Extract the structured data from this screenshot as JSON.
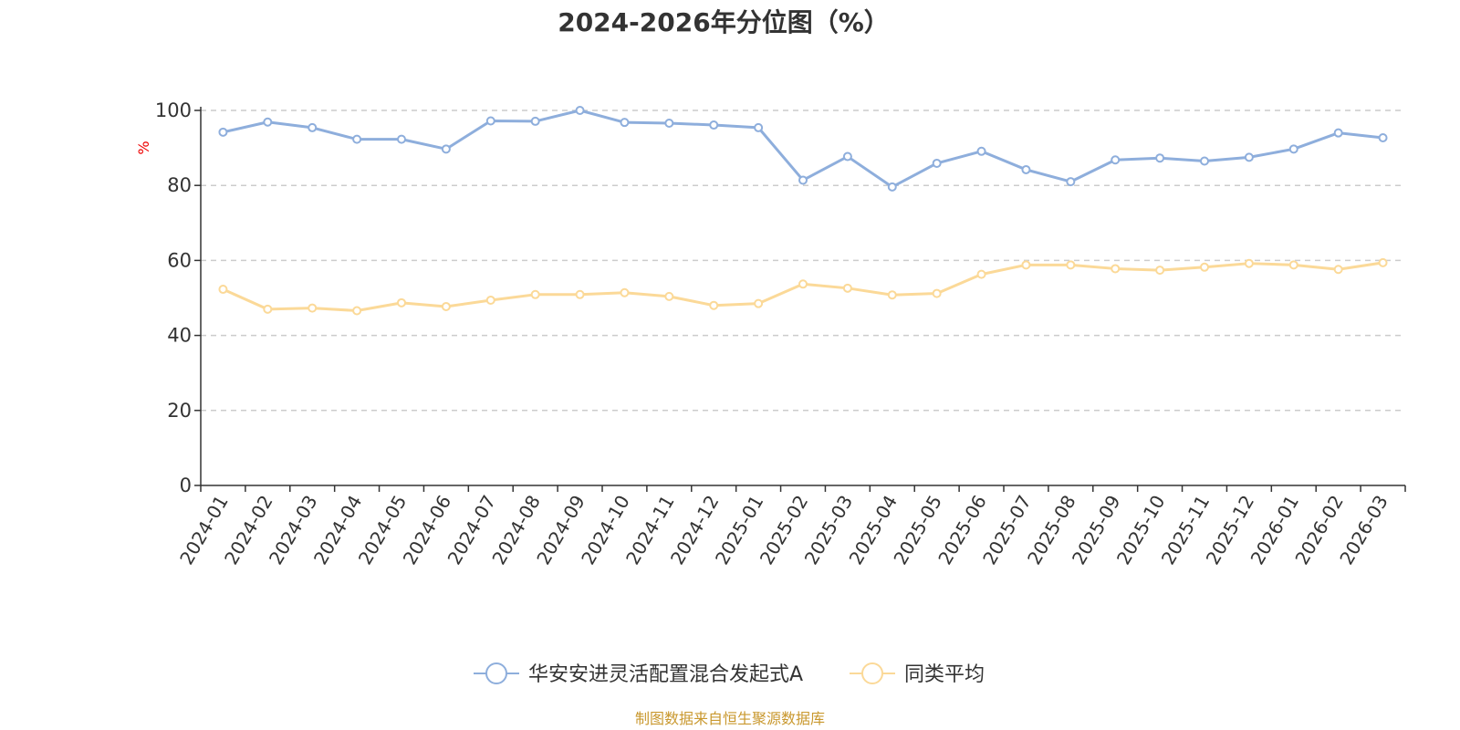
{
  "chart_data": {
    "type": "line",
    "title": "2024-2026年分位图（%）",
    "ylabel": "%",
    "xlabel": "",
    "ylim": [
      0,
      100
    ],
    "yticks": [
      0,
      20,
      40,
      60,
      80,
      100
    ],
    "grid": "horizontal-dashed",
    "legend_position": "bottom",
    "categories": [
      "2024-01",
      "2024-02",
      "2024-03",
      "2024-04",
      "2024-05",
      "2024-06",
      "2024-07",
      "2024-08",
      "2024-09",
      "2024-10",
      "2024-11",
      "2024-12",
      "2025-01",
      "2025-02",
      "2025-03",
      "2025-04",
      "2025-05",
      "2025-06",
      "2025-07",
      "2025-08",
      "2025-09",
      "2025-10",
      "2025-11",
      "2025-12",
      "2026-01",
      "2026-02",
      "2026-03"
    ],
    "series": [
      {
        "name": "华安安进灵活配置混合发起式A",
        "color": "#8eaedc",
        "values": [
          94.2,
          96.9,
          95.4,
          92.3,
          92.3,
          89.7,
          97.2,
          97.1,
          100.0,
          96.8,
          96.6,
          96.1,
          95.4,
          81.4,
          87.7,
          79.6,
          85.9,
          89.1,
          84.2,
          81.0,
          86.8,
          87.3,
          86.5,
          87.5,
          89.7,
          94.0,
          92.7
        ]
      },
      {
        "name": "同类平均",
        "color": "#fbd998",
        "values": [
          52.3,
          47.0,
          47.3,
          46.6,
          48.7,
          47.7,
          49.4,
          50.9,
          50.9,
          51.4,
          50.4,
          48.0,
          48.5,
          53.7,
          52.6,
          50.8,
          51.2,
          56.3,
          58.8,
          58.8,
          57.8,
          57.4,
          58.2,
          59.2,
          58.8,
          57.6,
          59.4
        ]
      }
    ]
  },
  "source_text": "制图数据来自恒生聚源数据库"
}
